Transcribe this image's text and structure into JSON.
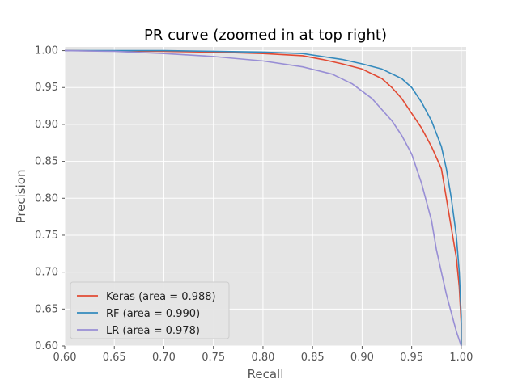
{
  "chart_data": {
    "type": "line",
    "title": "PR curve (zoomed in at top right)",
    "xlabel": "Recall",
    "ylabel": "Precision",
    "xlim": [
      0.6,
      1.005
    ],
    "ylim": [
      0.6,
      1.005
    ],
    "xticks": [
      0.6,
      0.65,
      0.7,
      0.75,
      0.8,
      0.85,
      0.9,
      0.95,
      1.0
    ],
    "xtick_labels": [
      "0.60",
      "0.65",
      "0.70",
      "0.75",
      "0.80",
      "0.85",
      "0.90",
      "0.95",
      "1.00"
    ],
    "yticks": [
      0.6,
      0.65,
      0.7,
      0.75,
      0.8,
      0.85,
      0.9,
      0.95,
      1.0
    ],
    "ytick_labels": [
      "0.60",
      "0.65",
      "0.70",
      "0.75",
      "0.80",
      "0.85",
      "0.90",
      "0.95",
      "1.00"
    ],
    "grid": true,
    "legend_position": "lower-left",
    "background_color": "#e5e5e5",
    "series": [
      {
        "name": "Keras (area = 0.988)",
        "color": "#e24a33",
        "points": [
          [
            0.6,
            1.0
          ],
          [
            0.7,
            0.999
          ],
          [
            0.75,
            0.998
          ],
          [
            0.8,
            0.996
          ],
          [
            0.84,
            0.993
          ],
          [
            0.86,
            0.988
          ],
          [
            0.88,
            0.982
          ],
          [
            0.9,
            0.975
          ],
          [
            0.92,
            0.962
          ],
          [
            0.93,
            0.95
          ],
          [
            0.94,
            0.935
          ],
          [
            0.95,
            0.915
          ],
          [
            0.96,
            0.895
          ],
          [
            0.97,
            0.87
          ],
          [
            0.98,
            0.84
          ],
          [
            0.985,
            0.8
          ],
          [
            0.99,
            0.76
          ],
          [
            0.995,
            0.72
          ],
          [
            0.998,
            0.68
          ],
          [
            1.0,
            0.63
          ],
          [
            1.0,
            0.6
          ]
        ]
      },
      {
        "name": "RF (area = 0.990)",
        "color": "#348abd",
        "points": [
          [
            0.6,
            1.0
          ],
          [
            0.7,
            1.0
          ],
          [
            0.75,
            0.999
          ],
          [
            0.8,
            0.998
          ],
          [
            0.84,
            0.996
          ],
          [
            0.86,
            0.992
          ],
          [
            0.88,
            0.988
          ],
          [
            0.9,
            0.982
          ],
          [
            0.92,
            0.975
          ],
          [
            0.94,
            0.962
          ],
          [
            0.95,
            0.95
          ],
          [
            0.96,
            0.93
          ],
          [
            0.97,
            0.905
          ],
          [
            0.98,
            0.87
          ],
          [
            0.985,
            0.84
          ],
          [
            0.99,
            0.8
          ],
          [
            0.995,
            0.75
          ],
          [
            0.998,
            0.7
          ],
          [
            1.0,
            0.64
          ],
          [
            1.0,
            0.6
          ]
        ]
      },
      {
        "name": "LR (area = 0.978)",
        "color": "#988ed5",
        "points": [
          [
            0.6,
            1.0
          ],
          [
            0.65,
            0.999
          ],
          [
            0.7,
            0.996
          ],
          [
            0.75,
            0.992
          ],
          [
            0.8,
            0.986
          ],
          [
            0.84,
            0.978
          ],
          [
            0.87,
            0.968
          ],
          [
            0.89,
            0.955
          ],
          [
            0.91,
            0.935
          ],
          [
            0.93,
            0.905
          ],
          [
            0.94,
            0.885
          ],
          [
            0.95,
            0.86
          ],
          [
            0.96,
            0.82
          ],
          [
            0.97,
            0.77
          ],
          [
            0.975,
            0.73
          ],
          [
            0.98,
            0.7
          ],
          [
            0.985,
            0.67
          ],
          [
            0.99,
            0.645
          ],
          [
            0.995,
            0.62
          ],
          [
            1.0,
            0.6
          ]
        ]
      }
    ]
  }
}
